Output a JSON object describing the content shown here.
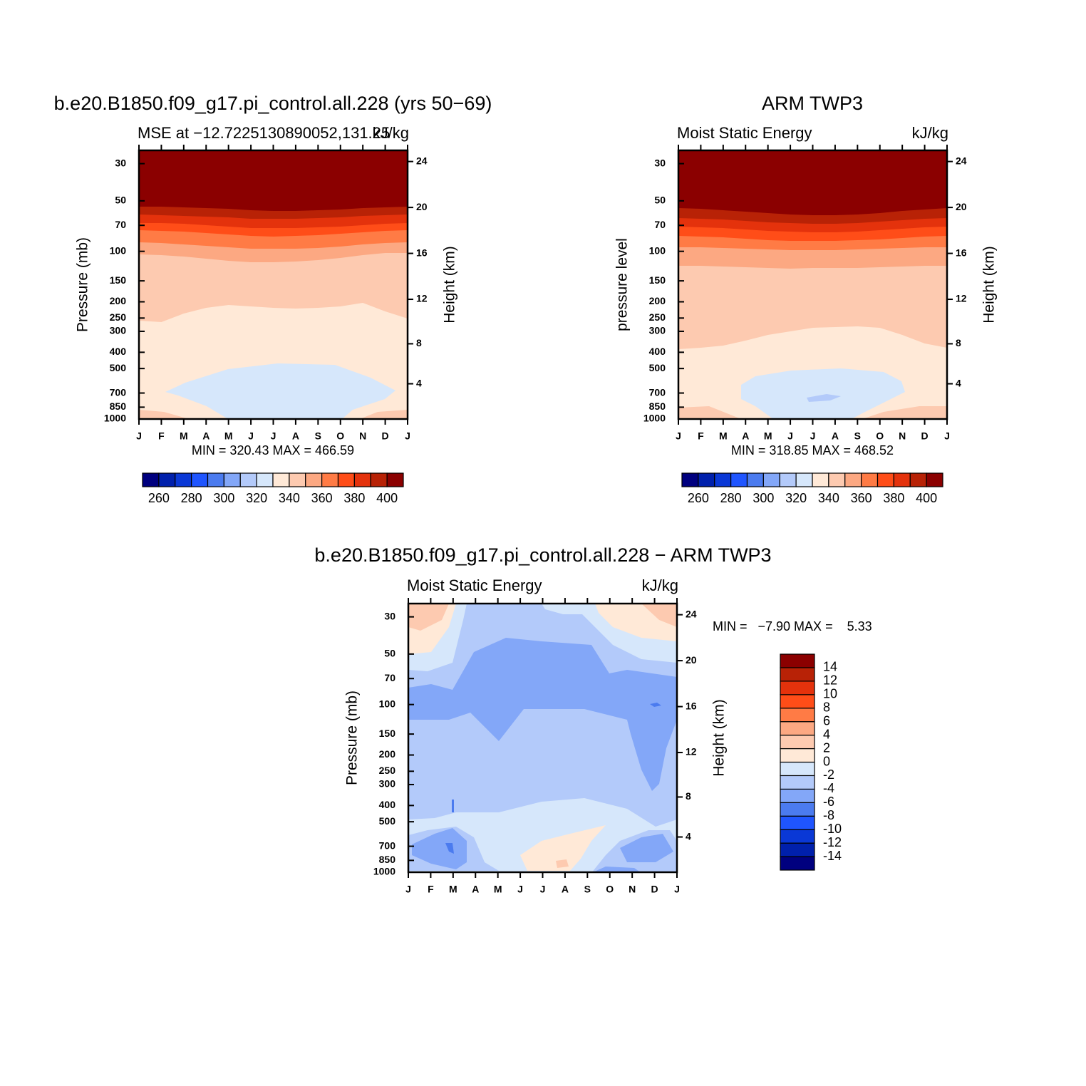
{
  "chart_data": [
    {
      "type": "contour",
      "title": "b.e20.B1850.f09_g17.pi_control.all.228 (yrs 50−69)",
      "left_string": "MSE at −12.7225130890052,131.25",
      "right_string": "kJ/kg",
      "ylabel": "Pressure (mb)",
      "y2label": "Height (km)",
      "stats_text": "MIN = 320.43 MAX = 466.59",
      "categories": [
        "J",
        "F",
        "M",
        "A",
        "M",
        "J",
        "J",
        "A",
        "S",
        "O",
        "N",
        "D",
        "J"
      ],
      "ylim": [
        1000,
        25
      ],
      "ylog": true,
      "yticks": [
        30,
        50,
        70,
        100,
        150,
        200,
        250,
        300,
        400,
        500,
        700,
        850,
        1000
      ],
      "y2ticks": [
        4,
        8,
        12,
        16,
        20,
        24
      ],
      "levels": [
        260,
        270,
        280,
        290,
        300,
        310,
        320,
        330,
        340,
        350,
        360,
        370,
        380,
        390,
        400
      ],
      "colors": [
        "#00007f",
        "#0020ac",
        "#0a38d6",
        "#1f55ff",
        "#4b7bef",
        "#83a7f8",
        "#b3cafa",
        "#d6e7fb",
        "#ffe9d7",
        "#fdcab0",
        "#fca882",
        "#ff7b45",
        "#ff4d18",
        "#e4320c",
        "#b82206",
        "#8b0000"
      ],
      "cbar_ticks": [
        260,
        280,
        300,
        320,
        340,
        360,
        380,
        400
      ],
      "colorbar": "horizontal"
    },
    {
      "type": "contour",
      "title": "ARM TWP3",
      "left_string": "Moist Static Energy",
      "right_string": "kJ/kg",
      "ylabel": "pressure level",
      "y2label": "Height (km)",
      "stats_text": "MIN = 318.85 MAX = 468.52",
      "categories": [
        "J",
        "F",
        "M",
        "A",
        "M",
        "J",
        "J",
        "A",
        "S",
        "O",
        "N",
        "D",
        "J"
      ],
      "ylim": [
        1000,
        25
      ],
      "ylog": true,
      "yticks": [
        30,
        50,
        70,
        100,
        150,
        200,
        250,
        300,
        400,
        500,
        700,
        850,
        1000
      ],
      "y2ticks": [
        4,
        8,
        12,
        16,
        20,
        24
      ],
      "levels": [
        260,
        270,
        280,
        290,
        300,
        310,
        320,
        330,
        340,
        350,
        360,
        370,
        380,
        390,
        400
      ],
      "colors": [
        "#00007f",
        "#0020ac",
        "#0a38d6",
        "#1f55ff",
        "#4b7bef",
        "#83a7f8",
        "#b3cafa",
        "#d6e7fb",
        "#ffe9d7",
        "#fdcab0",
        "#fca882",
        "#ff7b45",
        "#ff4d18",
        "#e4320c",
        "#b82206",
        "#8b0000"
      ],
      "cbar_ticks": [
        260,
        280,
        300,
        320,
        340,
        360,
        380,
        400
      ],
      "colorbar": "horizontal"
    },
    {
      "type": "contour",
      "title": "b.e20.B1850.f09_g17.pi_control.all.228 − ARM TWP3",
      "left_string": "Moist Static Energy",
      "right_string": "kJ/kg",
      "ylabel": "Pressure (mb)",
      "y2label": "Height (km)",
      "stats_text": "MIN =   −7.90 MAX =    5.33",
      "categories": [
        "J",
        "F",
        "M",
        "A",
        "M",
        "J",
        "J",
        "A",
        "S",
        "O",
        "N",
        "D",
        "J"
      ],
      "ylim": [
        1000,
        25
      ],
      "ylog": true,
      "yticks": [
        30,
        50,
        70,
        100,
        150,
        200,
        250,
        300,
        400,
        500,
        700,
        850,
        1000
      ],
      "y2ticks": [
        4,
        8,
        12,
        16,
        20,
        24
      ],
      "levels": [
        -14,
        -12,
        -10,
        -8,
        -6,
        -4,
        -2,
        0,
        2,
        4,
        6,
        8,
        10,
        12,
        14
      ],
      "colors": [
        "#00007f",
        "#0020ac",
        "#0a38d6",
        "#1f55ff",
        "#4b7bef",
        "#83a7f8",
        "#b3cafa",
        "#d6e7fb",
        "#ffe9d7",
        "#fdcab0",
        "#fca882",
        "#ff7b45",
        "#ff4d18",
        "#e4320c",
        "#b82206",
        "#8b0000"
      ],
      "cbar_ticks": [
        -14,
        -12,
        -10,
        -8,
        -6,
        -4,
        -2,
        0,
        2,
        4,
        6,
        8,
        10,
        12,
        14
      ],
      "colorbar": "vertical"
    }
  ]
}
